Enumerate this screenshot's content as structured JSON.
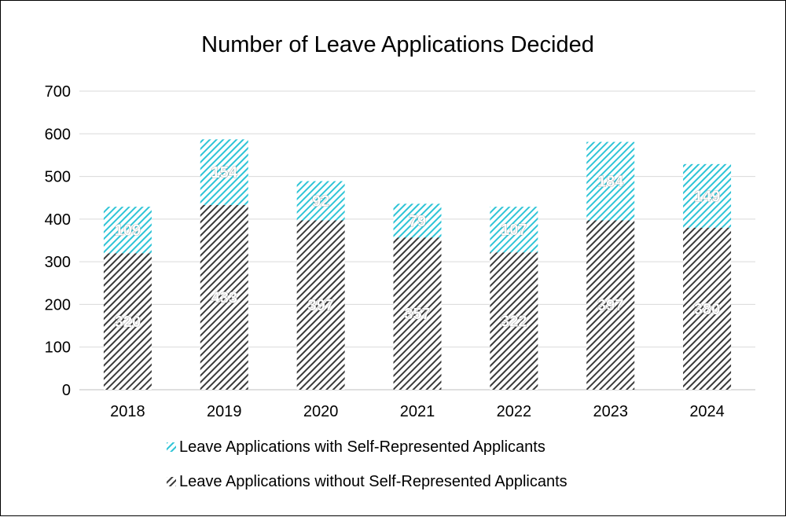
{
  "chart_data": {
    "type": "bar",
    "stacked": true,
    "title": "Number of Leave Applications Decided",
    "xlabel": "",
    "ylabel": "",
    "categories": [
      "2018",
      "2019",
      "2020",
      "2021",
      "2022",
      "2023",
      "2024"
    ],
    "ylim": [
      0,
      700
    ],
    "yticks": [
      0,
      100,
      200,
      300,
      400,
      500,
      600,
      700
    ],
    "grid": true,
    "legend_position": "bottom",
    "series": [
      {
        "name": "Leave Applications without Self-Represented Applicants",
        "values": [
          320,
          433,
          397,
          357,
          322,
          397,
          380
        ],
        "color": "#3a3a3a",
        "pattern": "diagonal-hatch"
      },
      {
        "name": "Leave Applications with Self-Represented Applicants",
        "values": [
          109,
          154,
          92,
          79,
          107,
          184,
          149
        ],
        "color": "#2ec4d6",
        "pattern": "diagonal-hatch"
      }
    ]
  },
  "colors": {
    "gridline": "#d9d9d9",
    "axis": "#bfbfbf",
    "hatch_background": "#ffffff"
  }
}
